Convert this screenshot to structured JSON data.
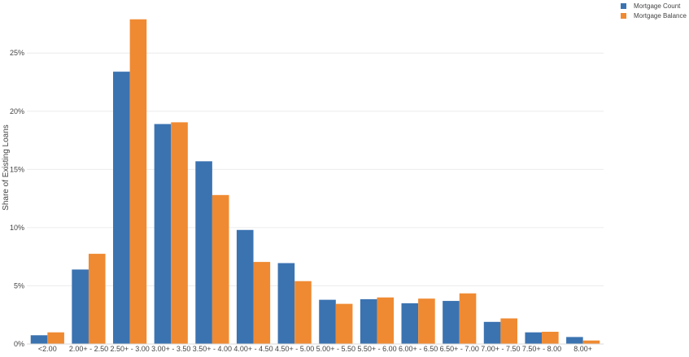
{
  "chart_data": {
    "type": "bar",
    "ylabel": "Share of Existing Loans",
    "xlabel": "",
    "ylim": [
      0,
      29
    ],
    "yticks": [
      0,
      5,
      10,
      15,
      20,
      25
    ],
    "ytick_labels": [
      "0%",
      "5%",
      "10%",
      "15%",
      "20%",
      "25%"
    ],
    "grid": true,
    "legend_position": "top-right",
    "categories": [
      "<2.00",
      "2.00+ - 2.50",
      "2.50+ - 3.00",
      "3.00+ - 3.50",
      "3.50+ - 4.00",
      "4.00+ - 4.50",
      "4.50+ - 5.00",
      "5.00+ - 5.50",
      "5.50+ - 6.00",
      "6.00+ - 6.50",
      "6.50+ - 7.00",
      "7.00+ - 7.50",
      "7.50+ - 8.00",
      "8.00+"
    ],
    "series": [
      {
        "name": "Mortgage Count",
        "color": "#3b73b1",
        "values": [
          0.75,
          6.4,
          23.4,
          18.9,
          15.7,
          9.8,
          6.95,
          3.8,
          3.85,
          3.5,
          3.7,
          1.9,
          1.0,
          0.6
        ]
      },
      {
        "name": "Mortgage Balance",
        "color": "#ef8a32",
        "values": [
          1.0,
          7.75,
          27.9,
          19.05,
          12.8,
          7.05,
          5.4,
          3.45,
          4.0,
          3.9,
          4.35,
          2.2,
          1.05,
          0.3
        ]
      }
    ]
  }
}
